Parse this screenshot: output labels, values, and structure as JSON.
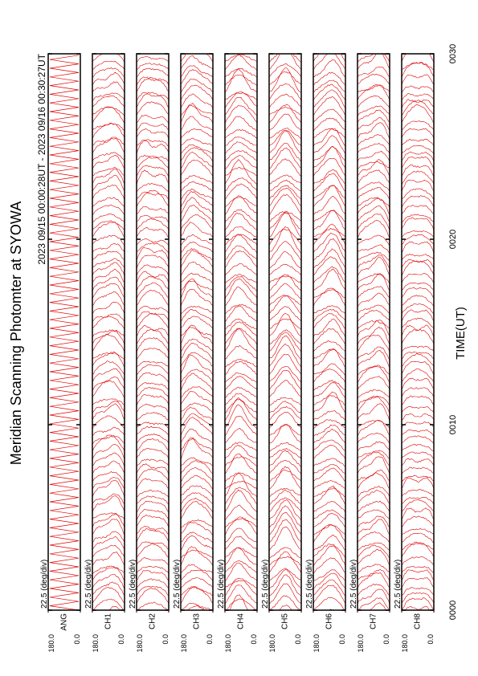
{
  "chart_data": {
    "type": "line",
    "title": "Meridian Scanning Photomter at SYOWA",
    "subtitle": "2023 09/15 00:00:28UT - 2023 09/16 00:30:27UT",
    "x_label": "TIME(UT)",
    "xlim": [
      0,
      30
    ],
    "xticks": [
      {
        "value": 0,
        "label": "0000"
      },
      {
        "value": 10,
        "label": "0010"
      },
      {
        "value": 20,
        "label": "0020"
      },
      {
        "value": 30,
        "label": "0030"
      }
    ],
    "ylim": [
      0,
      180
    ],
    "yticks": [
      {
        "value": 0,
        "label": "0.0"
      },
      {
        "value": 180,
        "label": "180.0"
      }
    ],
    "scale_label": "22.5 (deg/div)",
    "panels": [
      "ANG",
      "CH1",
      "CH2",
      "CH3",
      "CH4",
      "CH5",
      "CH6",
      "CH7",
      "CH8"
    ],
    "color": "#e00000"
  }
}
